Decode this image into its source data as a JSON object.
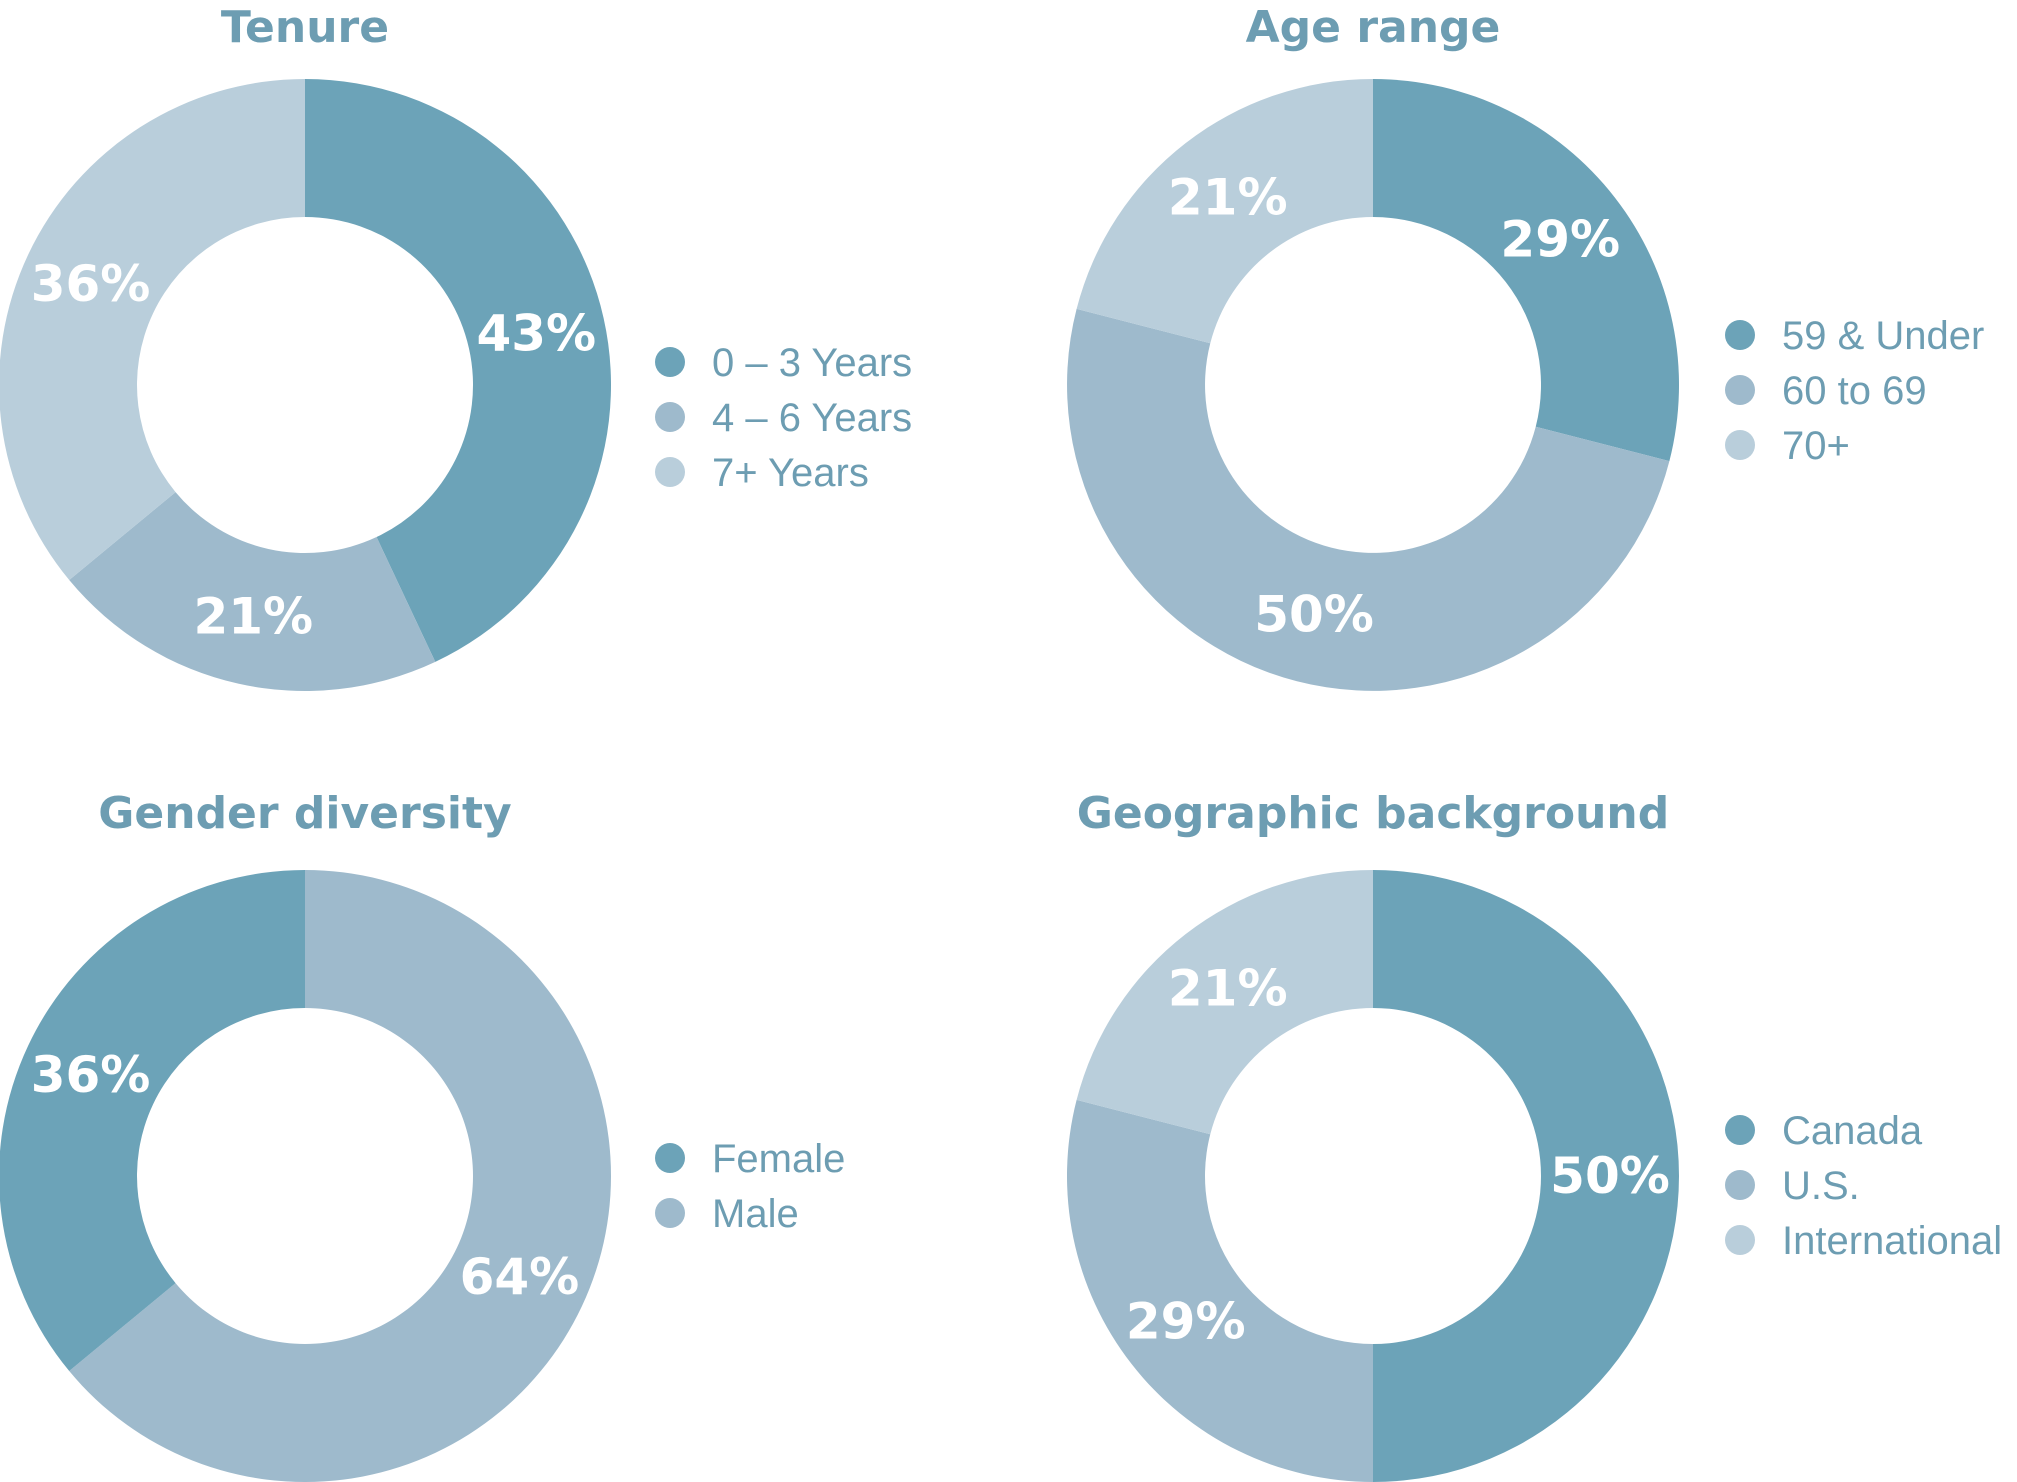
{
  "colors": {
    "dark": "#6ca3b8",
    "mid": "#9ebacc",
    "light": "#b9cedb",
    "title": "#6d9db2",
    "legend_text": "#6d9db2",
    "label": "#ffffff"
  },
  "chart_data": [
    {
      "type": "pie",
      "title": "Tenure",
      "slices": [
        {
          "label": "0 – 3 Years",
          "value": 43,
          "display": "43%",
          "color": "dark"
        },
        {
          "label": "4 – 6 Years",
          "value": 21,
          "display": "21%",
          "color": "mid"
        },
        {
          "label": "7+ Years",
          "value": 36,
          "display": "36%",
          "color": "light"
        }
      ]
    },
    {
      "type": "pie",
      "title": "Age range",
      "slices": [
        {
          "label": "59 & Under",
          "value": 29,
          "display": "29%",
          "color": "dark"
        },
        {
          "label": "60 to 69",
          "value": 50,
          "display": "50%",
          "color": "mid"
        },
        {
          "label": "70+",
          "value": 21,
          "display": "21%",
          "color": "light"
        }
      ]
    },
    {
      "type": "pie",
      "title": "Gender diversity",
      "slices": [
        {
          "label": "Male",
          "value": 64,
          "display": "64%",
          "color": "mid"
        },
        {
          "label": "Female",
          "value": 36,
          "display": "36%",
          "color": "dark"
        }
      ],
      "legend_order": [
        "Female",
        "Male"
      ]
    },
    {
      "type": "pie",
      "title": "Geographic background",
      "slices": [
        {
          "label": "Canada",
          "value": 50,
          "display": "50%",
          "color": "dark"
        },
        {
          "label": "U.S.",
          "value": 29,
          "display": "29%",
          "color": "mid"
        },
        {
          "label": "International",
          "value": 21,
          "display": "21%",
          "color": "light"
        }
      ]
    }
  ]
}
